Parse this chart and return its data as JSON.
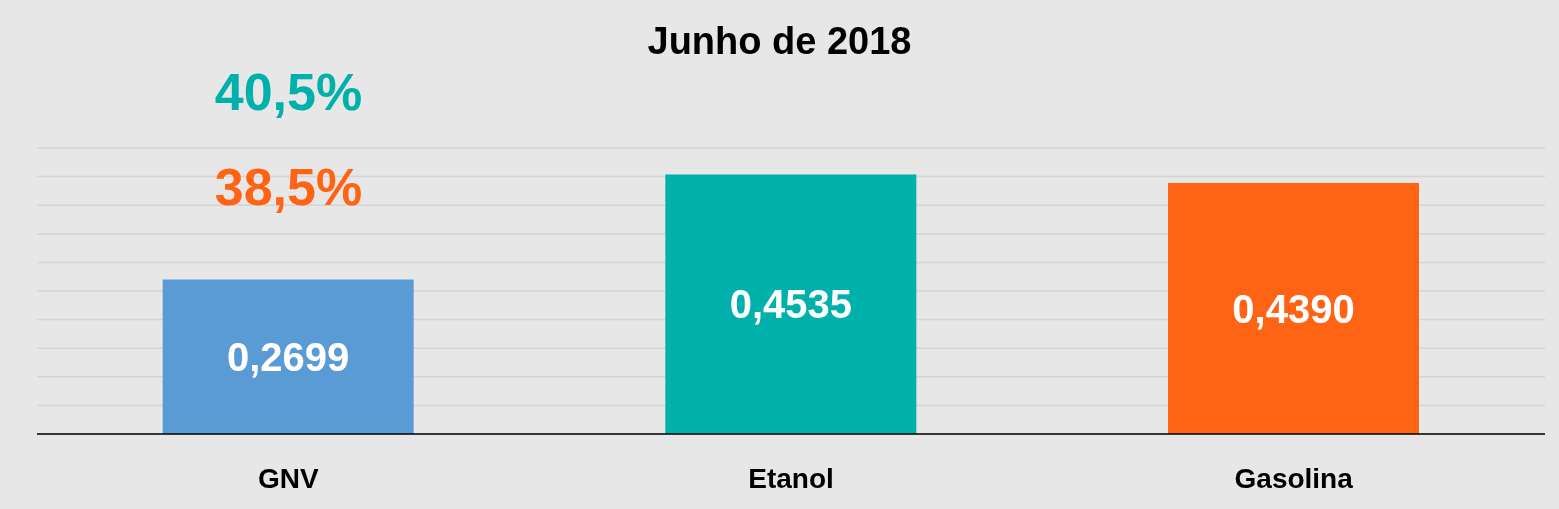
{
  "chart_data": {
    "type": "bar",
    "title": "Junho de 2018",
    "categories": [
      "GNV",
      "Etanol",
      "Gasolina"
    ],
    "values": [
      0.2699,
      0.4535,
      0.439
    ],
    "value_labels": [
      "0,2699",
      "0,4535",
      "0,4390"
    ],
    "colors": [
      "#5b9bd5",
      "#00b0aa",
      "#ff6314"
    ],
    "ylim": [
      0,
      0.5
    ],
    "yticks": [
      {
        "value": 0,
        "label": null
      },
      {
        "value": 0.05,
        "label": null
      },
      {
        "value": 0.1,
        "label": null
      },
      {
        "value": 0.15,
        "label": null
      },
      {
        "value": 0.2,
        "label": null
      },
      {
        "value": 0.25,
        "label": null
      },
      {
        "value": 0.3,
        "label": null
      },
      {
        "value": 0.35,
        "label": null
      },
      {
        "value": 0.4,
        "label": null
      },
      {
        "value": 0.45,
        "label": null
      },
      {
        "value": 0.5,
        "label": null
      }
    ],
    "grid": "y",
    "tick_labels": "x",
    "annotations": [
      "40,5%",
      "38,5%"
    ]
  }
}
